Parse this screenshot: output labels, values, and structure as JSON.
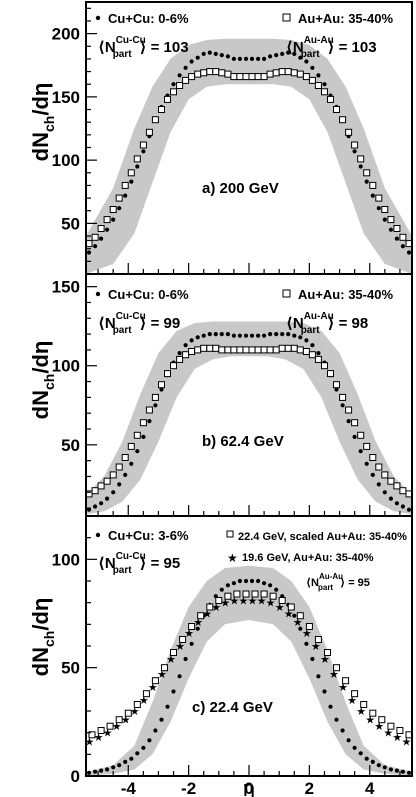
{
  "chart_data": [
    {
      "type": "scatter",
      "panel_label": "a) 200 GeV",
      "ylabel": "dN",
      "ylabel_sub": "ch",
      "ylabel_tail": "/dη",
      "xlim": [
        -5.4,
        5.4
      ],
      "ylim": [
        10,
        225
      ],
      "yticks": [
        "50",
        "100",
        "150",
        "200"
      ],
      "legend_left": {
        "name": "Cu+Cu: 0-6%",
        "npart_pre": "⟨N",
        "npart_sup": "Cu-Cu",
        "npart_sub": "part",
        "npart_val": "⟩ = 103"
      },
      "legend_right": {
        "name": "Au+Au: 35-40%",
        "npart_pre": "⟨N",
        "npart_sup": "Au-Au",
        "npart_sub": "part",
        "npart_val": "⟩ = 103"
      },
      "band": {
        "x": [
          -5.4,
          -4.5,
          -3.8,
          -3.2,
          -2.6,
          -2.0,
          -1.4,
          -0.8,
          0,
          0.8,
          1.4,
          2.0,
          2.6,
          3.2,
          3.8,
          4.5,
          5.4
        ],
        "lower": [
          10,
          18,
          42,
          82,
          122,
          148,
          158,
          160,
          160,
          160,
          158,
          148,
          122,
          82,
          42,
          18,
          10
        ],
        "upper": [
          40,
          78,
          125,
          158,
          180,
          191,
          195,
          196,
          196,
          196,
          195,
          191,
          180,
          158,
          125,
          78,
          40
        ]
      },
      "series": [
        {
          "name": "Cu+Cu: 0-6%",
          "marker": "dot",
          "x": [
            -5.3,
            -5.1,
            -4.9,
            -4.7,
            -4.5,
            -4.3,
            -4.1,
            -3.9,
            -3.7,
            -3.5,
            -3.3,
            -3.1,
            -2.9,
            -2.7,
            -2.5,
            -2.3,
            -2.1,
            -1.9,
            -1.7,
            -1.5,
            -1.3,
            -1.1,
            -0.9,
            -0.7,
            -0.5,
            -0.3,
            -0.1,
            0.1,
            0.3,
            0.5,
            0.7,
            0.9,
            1.1,
            1.3,
            1.5,
            1.7,
            1.9,
            2.1,
            2.3,
            2.5,
            2.7,
            2.9,
            3.1,
            3.3,
            3.5,
            3.7,
            3.9,
            4.1,
            4.3,
            4.5,
            4.7,
            4.9,
            5.1,
            5.3
          ],
          "y": [
            27,
            32,
            38,
            45,
            53,
            62,
            72,
            83,
            95,
            107,
            119,
            131,
            142,
            151,
            160,
            167,
            173,
            178,
            181,
            184,
            185,
            184,
            183,
            182,
            180,
            180,
            180,
            180,
            180,
            180,
            182,
            183,
            184,
            185,
            184,
            181,
            178,
            173,
            167,
            160,
            151,
            142,
            131,
            119,
            107,
            95,
            83,
            72,
            62,
            53,
            45,
            38,
            32,
            27
          ]
        },
        {
          "name": "Au+Au: 35-40%",
          "marker": "open-square",
          "x": [
            -5.3,
            -5.1,
            -4.9,
            -4.7,
            -4.5,
            -4.3,
            -4.1,
            -3.9,
            -3.7,
            -3.5,
            -3.3,
            -3.1,
            -2.9,
            -2.7,
            -2.5,
            -2.3,
            -2.1,
            -1.9,
            -1.7,
            -1.5,
            -1.3,
            -1.1,
            -0.9,
            -0.7,
            -0.5,
            -0.3,
            -0.1,
            0.1,
            0.3,
            0.5,
            0.7,
            0.9,
            1.1,
            1.3,
            1.5,
            1.7,
            1.9,
            2.1,
            2.3,
            2.5,
            2.7,
            2.9,
            3.1,
            3.3,
            3.5,
            3.7,
            3.9,
            4.1,
            4.3,
            4.5,
            4.7,
            4.9,
            5.1,
            5.3
          ],
          "y": [
            34,
            39,
            46,
            53,
            61,
            70,
            80,
            90,
            101,
            112,
            122,
            132,
            140,
            148,
            154,
            159,
            163,
            166,
            168,
            169,
            170,
            170,
            169,
            168,
            166,
            166,
            166,
            166,
            166,
            166,
            168,
            169,
            170,
            170,
            169,
            168,
            166,
            163,
            159,
            154,
            148,
            140,
            132,
            122,
            112,
            101,
            90,
            80,
            70,
            61,
            53,
            46,
            39,
            34
          ]
        }
      ]
    },
    {
      "type": "scatter",
      "panel_label": "b)  62.4 GeV",
      "ylabel": "dN",
      "ylabel_sub": "ch",
      "ylabel_tail": "/dη",
      "xlim": [
        -5.4,
        5.4
      ],
      "ylim": [
        5,
        158
      ],
      "yticks": [
        "50",
        "100",
        "150"
      ],
      "legend_left": {
        "name": "Cu+Cu: 0-6%",
        "npart_pre": "⟨N",
        "npart_sup": "Cu-Cu",
        "npart_sub": "part",
        "npart_val": "⟩ = 99"
      },
      "legend_right": {
        "name": "Au+Au: 35-40%",
        "npart_pre": "⟨N",
        "npart_sup": "Au-Au",
        "npart_sub": "part",
        "npart_val": "⟩ = 98"
      },
      "band": {
        "x": [
          -5.4,
          -4.8,
          -4.2,
          -3.6,
          -3.0,
          -2.4,
          -1.8,
          -1.2,
          -0.6,
          0,
          0.6,
          1.2,
          1.8,
          2.4,
          3.0,
          3.6,
          4.2,
          4.8,
          5.4
        ],
        "lower": [
          6,
          8,
          14,
          28,
          52,
          80,
          98,
          104,
          106,
          106,
          106,
          104,
          98,
          80,
          52,
          28,
          14,
          8,
          6
        ],
        "upper": [
          18,
          30,
          52,
          82,
          108,
          122,
          127,
          128,
          128,
          128,
          128,
          128,
          127,
          122,
          108,
          82,
          52,
          30,
          18
        ]
      },
      "series": [
        {
          "name": "Cu+Cu: 0-6%",
          "marker": "dot",
          "x": [
            -5.3,
            -5.1,
            -4.9,
            -4.7,
            -4.5,
            -4.3,
            -4.1,
            -3.9,
            -3.7,
            -3.5,
            -3.3,
            -3.1,
            -2.9,
            -2.7,
            -2.5,
            -2.3,
            -2.1,
            -1.9,
            -1.7,
            -1.5,
            -1.3,
            -1.1,
            -0.9,
            -0.7,
            -0.5,
            -0.3,
            -0.1,
            0.1,
            0.3,
            0.5,
            0.7,
            0.9,
            1.1,
            1.3,
            1.5,
            1.7,
            1.9,
            2.1,
            2.3,
            2.5,
            2.7,
            2.9,
            3.1,
            3.3,
            3.5,
            3.7,
            3.9,
            4.1,
            4.3,
            4.5,
            4.7,
            4.9,
            5.1,
            5.3
          ],
          "y": [
            9,
            11,
            13,
            16,
            20,
            25,
            31,
            38,
            46,
            55,
            65,
            75,
            85,
            94,
            102,
            108,
            113,
            116,
            118,
            119,
            120,
            120,
            120,
            120,
            119,
            119,
            119,
            119,
            119,
            119,
            120,
            120,
            120,
            120,
            119,
            118,
            116,
            113,
            108,
            102,
            94,
            85,
            75,
            65,
            55,
            46,
            38,
            31,
            25,
            20,
            16,
            13,
            11,
            9
          ]
        },
        {
          "name": "Au+Au: 35-40%",
          "marker": "open-square",
          "x": [
            -5.3,
            -5.1,
            -4.9,
            -4.7,
            -4.5,
            -4.3,
            -4.1,
            -3.9,
            -3.7,
            -3.5,
            -3.3,
            -3.1,
            -2.9,
            -2.7,
            -2.5,
            -2.3,
            -2.1,
            -1.9,
            -1.7,
            -1.5,
            -1.3,
            -1.1,
            -0.9,
            -0.7,
            -0.5,
            -0.3,
            -0.1,
            0.1,
            0.3,
            0.5,
            0.7,
            0.9,
            1.1,
            1.3,
            1.5,
            1.7,
            1.9,
            2.1,
            2.3,
            2.5,
            2.7,
            2.9,
            3.1,
            3.3,
            3.5,
            3.7,
            3.9,
            4.1,
            4.3,
            4.5,
            4.7,
            4.9,
            5.1,
            5.3
          ],
          "y": [
            19,
            21,
            24,
            27,
            31,
            36,
            42,
            49,
            56,
            64,
            72,
            80,
            88,
            95,
            100,
            104,
            107,
            109,
            110,
            111,
            111,
            111,
            110,
            110,
            110,
            110,
            110,
            110,
            110,
            110,
            110,
            110,
            111,
            111,
            111,
            110,
            109,
            107,
            104,
            100,
            95,
            88,
            80,
            72,
            64,
            56,
            49,
            42,
            36,
            31,
            27,
            24,
            21,
            19
          ]
        }
      ]
    },
    {
      "type": "scatter",
      "panel_label": "c)  22.4 GeV",
      "ylabel": "dN",
      "ylabel_sub": "ch",
      "ylabel_tail": "/dη",
      "xlabel": "η",
      "xlim": [
        -5.4,
        5.4
      ],
      "ylim": [
        0,
        120
      ],
      "yticks": [
        "0",
        "50",
        "100"
      ],
      "xticks": [
        "-4",
        "-2",
        "0",
        "2",
        "4"
      ],
      "legend_left": {
        "name": "Cu+Cu: 3-6%",
        "npart_pre": "⟨N",
        "npart_sup": "Cu-Cu",
        "npart_sub": "part",
        "npart_val": "⟩ = 95"
      },
      "legend_right_1": "22.4 GeV, scaled Au+Au: 35-40%",
      "legend_right_2": "19.6 GeV, Au+Au: 35-40%",
      "legend_right_npart": {
        "npart_pre": "⟨N",
        "npart_sup": "Au-Au",
        "npart_sub": "part",
        "npart_val": "⟩ = 95"
      },
      "band": {
        "x": [
          -5.4,
          -4.5,
          -3.8,
          -3.2,
          -2.6,
          -2.0,
          -1.4,
          -0.8,
          0,
          0.8,
          1.4,
          2.0,
          2.6,
          3.2,
          3.8,
          4.5,
          5.4
        ],
        "lower": [
          0,
          1,
          3,
          10,
          25,
          45,
          62,
          70,
          72,
          70,
          62,
          45,
          25,
          10,
          3,
          1,
          0
        ],
        "upper": [
          2,
          5,
          14,
          34,
          58,
          78,
          90,
          96,
          97,
          96,
          90,
          78,
          58,
          34,
          14,
          5,
          2
        ]
      },
      "series": [
        {
          "name": "Cu+Cu: 3-6%",
          "marker": "dot",
          "x": [
            -5.3,
            -5.1,
            -4.9,
            -4.7,
            -4.5,
            -4.3,
            -4.1,
            -3.9,
            -3.7,
            -3.5,
            -3.3,
            -3.1,
            -2.9,
            -2.7,
            -2.5,
            -2.3,
            -2.1,
            -1.9,
            -1.7,
            -1.5,
            -1.3,
            -1.1,
            -0.9,
            -0.7,
            -0.5,
            -0.3,
            -0.1,
            0.1,
            0.3,
            0.5,
            0.7,
            0.9,
            1.1,
            1.3,
            1.5,
            1.7,
            1.9,
            2.1,
            2.3,
            2.5,
            2.7,
            2.9,
            3.1,
            3.3,
            3.5,
            3.7,
            3.9,
            4.1,
            4.3,
            4.5,
            4.7,
            4.9,
            5.1,
            5.3
          ],
          "y": [
            1.5,
            2,
            2.5,
            3,
            4,
            5,
            6.5,
            8,
            10.5,
            13,
            16.5,
            21,
            26,
            32,
            39,
            46,
            54,
            61,
            68,
            74,
            79,
            83,
            86,
            88,
            89,
            90,
            90,
            90,
            90,
            89,
            88,
            86,
            83,
            79,
            74,
            68,
            61,
            54,
            46,
            39,
            32,
            26,
            21,
            16.5,
            13,
            10.5,
            8,
            6.5,
            5,
            4,
            3,
            2.5,
            2,
            1.5
          ]
        },
        {
          "name": "22.4 GeV, scaled Au+Au: 35-40%",
          "marker": "open-square",
          "x": [
            -5.2,
            -4.9,
            -4.6,
            -4.3,
            -4.0,
            -3.7,
            -3.4,
            -3.1,
            -2.8,
            -2.5,
            -2.2,
            -1.9,
            -1.6,
            -1.3,
            -1.0,
            -0.7,
            -0.4,
            -0.1,
            0.2,
            0.5,
            0.8,
            1.1,
            1.4,
            1.7,
            2.0,
            2.3,
            2.6,
            2.9,
            3.2,
            3.5,
            3.8,
            4.1,
            4.4,
            4.7,
            5.0,
            5.3
          ],
          "y": [
            19,
            21,
            23,
            26,
            29,
            33,
            38,
            44,
            50,
            57,
            63,
            69,
            74,
            78,
            81,
            83,
            84,
            84,
            84,
            84,
            83,
            81,
            78,
            74,
            69,
            63,
            57,
            50,
            44,
            38,
            33,
            29,
            26,
            23,
            21,
            19
          ]
        },
        {
          "name": "19.6 GeV, Au+Au: 35-40%",
          "marker": "star",
          "x": [
            -5.3,
            -5.0,
            -4.7,
            -4.4,
            -4.1,
            -3.8,
            -3.5,
            -3.2,
            -2.9,
            -2.6,
            -2.3,
            -2.0,
            -1.7,
            -1.4,
            -1.1,
            -0.8,
            -0.5,
            -0.2,
            0.1,
            0.4,
            0.7,
            1.0,
            1.3,
            1.6,
            1.9,
            2.2,
            2.5,
            2.8,
            3.1,
            3.4,
            3.7,
            4.0,
            4.3,
            4.6,
            4.9,
            5.2
          ],
          "y": [
            16,
            18,
            20,
            23,
            26,
            30,
            35,
            41,
            47,
            54,
            60,
            66,
            71,
            75,
            78,
            80,
            81,
            81,
            81,
            81,
            80,
            78,
            75,
            71,
            66,
            60,
            54,
            47,
            41,
            35,
            30,
            26,
            23,
            20,
            18,
            16
          ]
        }
      ]
    }
  ]
}
